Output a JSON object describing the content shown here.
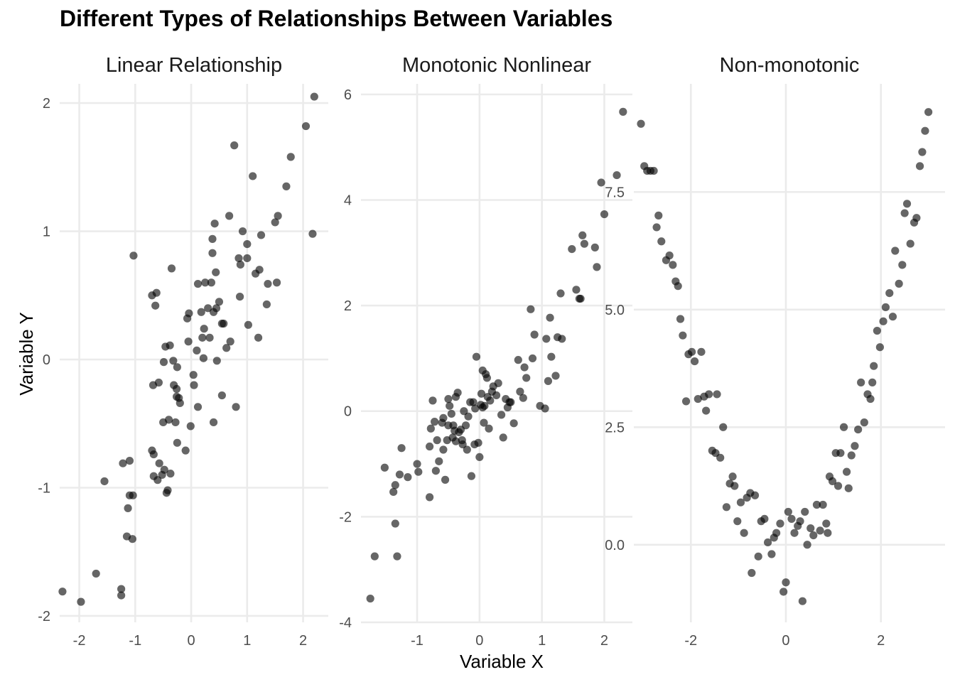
{
  "title": "Different Types of Relationships Between Variables",
  "xlabel": "Variable X",
  "ylabel": "Variable Y",
  "colors": {
    "point": "#000000",
    "grid": "#ebebeb",
    "background": "#ffffff"
  },
  "chart_data": [
    {
      "type": "scatter",
      "title": "Linear Relationship",
      "xlim": [
        -2.35,
        2.45
      ],
      "ylim": [
        -2.05,
        2.15
      ],
      "xticks": [
        -2,
        -1,
        0,
        1,
        2
      ],
      "xtick_labels": [
        "-2",
        "-1",
        "0",
        "1",
        "2"
      ],
      "yticks": [
        -2,
        -1,
        0,
        1,
        2
      ],
      "ytick_labels": [
        "-2",
        "-1",
        "0",
        "1",
        "2"
      ],
      "grid": true,
      "points": [
        [
          -2.3,
          -1.81
        ],
        [
          -1.97,
          -1.89
        ],
        [
          -1.7,
          -1.67
        ],
        [
          -1.55,
          -0.95
        ],
        [
          -1.25,
          -1.79
        ],
        [
          -1.25,
          -1.84
        ],
        [
          -1.22,
          -0.81
        ],
        [
          -1.15,
          -1.38
        ],
        [
          -1.13,
          -1.16
        ],
        [
          -1.1,
          -1.06
        ],
        [
          -1.1,
          -0.79
        ],
        [
          -1.04,
          -1.06
        ],
        [
          -1.05,
          -1.4
        ],
        [
          -1.03,
          0.81
        ],
        [
          -0.7,
          -0.71
        ],
        [
          -0.7,
          0.5
        ],
        [
          -0.68,
          -0.2
        ],
        [
          -0.67,
          -0.74
        ],
        [
          -0.67,
          -0.91
        ],
        [
          -0.64,
          0.42
        ],
        [
          -0.62,
          0.52
        ],
        [
          -0.6,
          -0.94
        ],
        [
          -0.58,
          -0.18
        ],
        [
          -0.57,
          -0.81
        ],
        [
          -0.52,
          -0.9
        ],
        [
          -0.5,
          -0.49
        ],
        [
          -0.48,
          -0.86
        ],
        [
          -0.49,
          -0.02
        ],
        [
          -0.46,
          0.1
        ],
        [
          -0.44,
          -1.04
        ],
        [
          -0.42,
          -1.02
        ],
        [
          -0.4,
          -0.47
        ],
        [
          -0.38,
          0.11
        ],
        [
          -0.37,
          -0.89
        ],
        [
          -0.35,
          0.71
        ],
        [
          -0.32,
          -0.01
        ],
        [
          -0.31,
          -0.2
        ],
        [
          -0.28,
          -0.49
        ],
        [
          -0.26,
          -0.23
        ],
        [
          -0.26,
          -0.29
        ],
        [
          -0.25,
          -0.06
        ],
        [
          -0.25,
          -0.65
        ],
        [
          -0.22,
          -0.3
        ],
        [
          -0.2,
          -0.34
        ],
        [
          -0.1,
          -0.71
        ],
        [
          -0.07,
          0.32
        ],
        [
          -0.05,
          0.14
        ],
        [
          -0.04,
          0.36
        ],
        [
          -0.01,
          -0.52
        ],
        [
          0.04,
          -0.12
        ],
        [
          0.05,
          -0.2
        ],
        [
          0.1,
          0.07
        ],
        [
          0.12,
          0.59
        ],
        [
          0.12,
          -0.37
        ],
        [
          0.18,
          0.37
        ],
        [
          0.2,
          0.17
        ],
        [
          0.22,
          0.01
        ],
        [
          0.23,
          0.24
        ],
        [
          0.25,
          0.6
        ],
        [
          0.3,
          0.4
        ],
        [
          0.33,
          0.17
        ],
        [
          0.36,
          0.6
        ],
        [
          0.38,
          0.83
        ],
        [
          0.38,
          0.94
        ],
        [
          0.4,
          0.37
        ],
        [
          0.4,
          -0.49
        ],
        [
          0.42,
          1.06
        ],
        [
          0.44,
          0.68
        ],
        [
          0.45,
          0.4
        ],
        [
          0.46,
          -0.01
        ],
        [
          0.5,
          0.45
        ],
        [
          0.55,
          0.28
        ],
        [
          0.55,
          -0.28
        ],
        [
          0.58,
          0.28
        ],
        [
          0.63,
          0.09
        ],
        [
          0.68,
          1.12
        ],
        [
          0.7,
          0.14
        ],
        [
          0.77,
          1.67
        ],
        [
          0.8,
          -0.37
        ],
        [
          0.85,
          0.79
        ],
        [
          0.87,
          0.49
        ],
        [
          0.88,
          0.74
        ],
        [
          0.92,
          1.0
        ],
        [
          1.0,
          0.9
        ],
        [
          1.0,
          0.79
        ],
        [
          1.02,
          0.27
        ],
        [
          1.1,
          1.43
        ],
        [
          1.15,
          0.67
        ],
        [
          1.2,
          0.17
        ],
        [
          1.22,
          0.7
        ],
        [
          1.25,
          0.97
        ],
        [
          1.35,
          0.43
        ],
        [
          1.37,
          0.59
        ],
        [
          1.5,
          1.07
        ],
        [
          1.53,
          0.6
        ],
        [
          1.55,
          1.12
        ],
        [
          1.7,
          1.35
        ],
        [
          1.78,
          1.58
        ],
        [
          2.05,
          1.82
        ],
        [
          2.17,
          0.98
        ],
        [
          2.2,
          2.05
        ]
      ]
    },
    {
      "type": "scatter",
      "title": "Monotonic Nonlinear",
      "xlim": [
        -1.9,
        2.45
      ],
      "ylim": [
        -4.0,
        6.2
      ],
      "xticks": [
        -1,
        0,
        1,
        2
      ],
      "xtick_labels": [
        "-1",
        "0",
        "1",
        "2"
      ],
      "yticks": [
        -4,
        -2,
        0,
        2,
        4,
        6
      ],
      "ytick_labels": [
        "-4",
        "-2",
        "0",
        "2",
        "4",
        "6"
      ],
      "grid": true,
      "points": [
        [
          -1.75,
          -3.55
        ],
        [
          -1.68,
          -2.75
        ],
        [
          -1.52,
          -1.07
        ],
        [
          -1.38,
          -1.53
        ],
        [
          -1.35,
          -1.4
        ],
        [
          -1.35,
          -2.13
        ],
        [
          -1.32,
          -2.75
        ],
        [
          -1.28,
          -1.2
        ],
        [
          -1.25,
          -0.7
        ],
        [
          -1.15,
          -1.25
        ],
        [
          -1.0,
          -1.0
        ],
        [
          -0.98,
          -1.15
        ],
        [
          -0.8,
          -1.63
        ],
        [
          -0.8,
          -0.67
        ],
        [
          -0.78,
          -0.33
        ],
        [
          -0.75,
          0.2
        ],
        [
          -0.72,
          -0.2
        ],
        [
          -0.7,
          -1.13
        ],
        [
          -0.68,
          -0.55
        ],
        [
          -0.65,
          -0.95
        ],
        [
          -0.6,
          -0.22
        ],
        [
          -0.58,
          -0.73
        ],
        [
          -0.58,
          -0.13
        ],
        [
          -0.55,
          -1.3
        ],
        [
          -0.52,
          -0.55
        ],
        [
          -0.5,
          -0.27
        ],
        [
          -0.5,
          0.23
        ],
        [
          -0.48,
          0.1
        ],
        [
          -0.45,
          -0.05
        ],
        [
          -0.43,
          -0.5
        ],
        [
          -0.42,
          -0.27
        ],
        [
          -0.4,
          -0.37
        ],
        [
          -0.38,
          0.27
        ],
        [
          -0.38,
          -0.57
        ],
        [
          -0.35,
          0.35
        ],
        [
          -0.33,
          -0.4
        ],
        [
          -0.3,
          -0.35
        ],
        [
          -0.28,
          -0.55
        ],
        [
          -0.27,
          -0.63
        ],
        [
          -0.25,
          0.0
        ],
        [
          -0.22,
          -0.27
        ],
        [
          -0.2,
          -0.73
        ],
        [
          -0.18,
          -0.1
        ],
        [
          -0.15,
          0.17
        ],
        [
          -0.13,
          -1.23
        ],
        [
          -0.1,
          0.17
        ],
        [
          -0.08,
          -0.63
        ],
        [
          -0.07,
          0.05
        ],
        [
          -0.05,
          1.03
        ],
        [
          -0.02,
          -0.6
        ],
        [
          0.0,
          -0.87
        ],
        [
          0.02,
          0.12
        ],
        [
          0.03,
          0.33
        ],
        [
          0.05,
          0.07
        ],
        [
          0.05,
          0.77
        ],
        [
          0.07,
          -0.22
        ],
        [
          0.08,
          0.1
        ],
        [
          0.1,
          0.7
        ],
        [
          0.12,
          0.63
        ],
        [
          0.13,
          0.27
        ],
        [
          0.15,
          -0.33
        ],
        [
          0.17,
          0.2
        ],
        [
          0.2,
          0.37
        ],
        [
          0.22,
          0.47
        ],
        [
          0.27,
          0.3
        ],
        [
          0.3,
          0.53
        ],
        [
          0.35,
          -0.07
        ],
        [
          0.38,
          -0.5
        ],
        [
          0.42,
          0.23
        ],
        [
          0.45,
          0.07
        ],
        [
          0.48,
          0.17
        ],
        [
          0.5,
          0.17
        ],
        [
          0.55,
          -0.23
        ],
        [
          0.62,
          0.97
        ],
        [
          0.65,
          0.37
        ],
        [
          0.7,
          0.25
        ],
        [
          0.72,
          0.83
        ],
        [
          0.75,
          0.63
        ],
        [
          0.82,
          1.93
        ],
        [
          0.85,
          1.0
        ],
        [
          0.88,
          1.45
        ],
        [
          0.97,
          0.1
        ],
        [
          1.05,
          0.05
        ],
        [
          1.07,
          1.37
        ],
        [
          1.1,
          0.57
        ],
        [
          1.13,
          1.77
        ],
        [
          1.15,
          1.03
        ],
        [
          1.22,
          0.67
        ],
        [
          1.25,
          1.4
        ],
        [
          1.3,
          2.23
        ],
        [
          1.32,
          1.37
        ],
        [
          1.48,
          3.07
        ],
        [
          1.55,
          2.3
        ],
        [
          1.6,
          2.13
        ],
        [
          1.62,
          2.13
        ],
        [
          1.65,
          3.33
        ],
        [
          1.68,
          3.17
        ],
        [
          1.85,
          3.1
        ],
        [
          1.88,
          2.73
        ],
        [
          1.95,
          4.33
        ],
        [
          2.0,
          3.73
        ],
        [
          2.2,
          4.47
        ],
        [
          2.3,
          5.67
        ]
      ]
    },
    {
      "type": "scatter",
      "title": "Non-monotonic",
      "xlim": [
        -3.2,
        3.35
      ],
      "ylim": [
        -1.65,
        9.8
      ],
      "xticks": [
        -2,
        0,
        2
      ],
      "xtick_labels": [
        "-2",
        "0",
        "2"
      ],
      "yticks": [
        0,
        2.5,
        5,
        7.5
      ],
      "ytick_labels": [
        "0.0",
        "2.5",
        "5.0",
        "7.5"
      ],
      "grid": true,
      "points": [
        [
          -3.05,
          8.95
        ],
        [
          -2.98,
          8.05
        ],
        [
          -2.92,
          7.95
        ],
        [
          -2.85,
          7.95
        ],
        [
          -2.78,
          7.95
        ],
        [
          -2.72,
          6.75
        ],
        [
          -2.68,
          7.0
        ],
        [
          -2.62,
          6.45
        ],
        [
          -2.52,
          6.05
        ],
        [
          -2.45,
          6.15
        ],
        [
          -2.38,
          5.95
        ],
        [
          -2.32,
          5.6
        ],
        [
          -2.27,
          5.5
        ],
        [
          -2.22,
          4.8
        ],
        [
          -2.17,
          4.45
        ],
        [
          -2.1,
          3.05
        ],
        [
          -2.05,
          4.05
        ],
        [
          -1.98,
          4.1
        ],
        [
          -1.92,
          3.9
        ],
        [
          -1.85,
          3.1
        ],
        [
          -1.78,
          4.1
        ],
        [
          -1.72,
          3.15
        ],
        [
          -1.68,
          2.85
        ],
        [
          -1.62,
          3.2
        ],
        [
          -1.55,
          2.0
        ],
        [
          -1.48,
          1.95
        ],
        [
          -1.45,
          3.2
        ],
        [
          -1.38,
          1.85
        ],
        [
          -1.32,
          2.5
        ],
        [
          -1.25,
          0.8
        ],
        [
          -1.18,
          1.3
        ],
        [
          -1.12,
          1.45
        ],
        [
          -1.08,
          1.25
        ],
        [
          -1.02,
          0.5
        ],
        [
          -0.95,
          0.9
        ],
        [
          -0.88,
          0.25
        ],
        [
          -0.82,
          1.0
        ],
        [
          -0.75,
          1.1
        ],
        [
          -0.72,
          -0.6
        ],
        [
          -0.65,
          1.05
        ],
        [
          -0.58,
          -0.25
        ],
        [
          -0.52,
          0.5
        ],
        [
          -0.45,
          0.55
        ],
        [
          -0.38,
          0.05
        ],
        [
          -0.3,
          -0.2
        ],
        [
          -0.25,
          0.15
        ],
        [
          -0.2,
          0.25
        ],
        [
          -0.12,
          0.45
        ],
        [
          -0.05,
          -1.0
        ],
        [
          0.0,
          -0.8
        ],
        [
          0.05,
          0.7
        ],
        [
          0.12,
          0.55
        ],
        [
          0.18,
          0.25
        ],
        [
          0.25,
          0.4
        ],
        [
          0.3,
          0.5
        ],
        [
          0.35,
          -1.2
        ],
        [
          0.4,
          0.7
        ],
        [
          0.45,
          0.0
        ],
        [
          0.52,
          0.35
        ],
        [
          0.58,
          0.2
        ],
        [
          0.65,
          0.85
        ],
        [
          0.72,
          0.3
        ],
        [
          0.78,
          0.85
        ],
        [
          0.85,
          0.45
        ],
        [
          0.88,
          0.25
        ],
        [
          0.92,
          1.45
        ],
        [
          0.98,
          1.35
        ],
        [
          1.05,
          1.95
        ],
        [
          1.1,
          1.25
        ],
        [
          1.15,
          1.95
        ],
        [
          1.22,
          2.5
        ],
        [
          1.28,
          1.55
        ],
        [
          1.32,
          1.2
        ],
        [
          1.38,
          1.9
        ],
        [
          1.45,
          2.1
        ],
        [
          1.52,
          2.45
        ],
        [
          1.58,
          3.45
        ],
        [
          1.65,
          2.6
        ],
        [
          1.72,
          3.2
        ],
        [
          1.78,
          3.1
        ],
        [
          1.82,
          3.45
        ],
        [
          1.85,
          3.8
        ],
        [
          1.92,
          4.55
        ],
        [
          1.98,
          4.2
        ],
        [
          2.05,
          4.75
        ],
        [
          2.1,
          5.05
        ],
        [
          2.18,
          5.35
        ],
        [
          2.25,
          4.85
        ],
        [
          2.3,
          6.25
        ],
        [
          2.38,
          5.55
        ],
        [
          2.45,
          5.95
        ],
        [
          2.5,
          7.05
        ],
        [
          2.55,
          7.25
        ],
        [
          2.62,
          6.4
        ],
        [
          2.7,
          6.85
        ],
        [
          2.75,
          6.95
        ],
        [
          2.82,
          8.05
        ],
        [
          2.87,
          8.35
        ],
        [
          2.93,
          8.8
        ],
        [
          3.0,
          9.2
        ]
      ]
    }
  ]
}
